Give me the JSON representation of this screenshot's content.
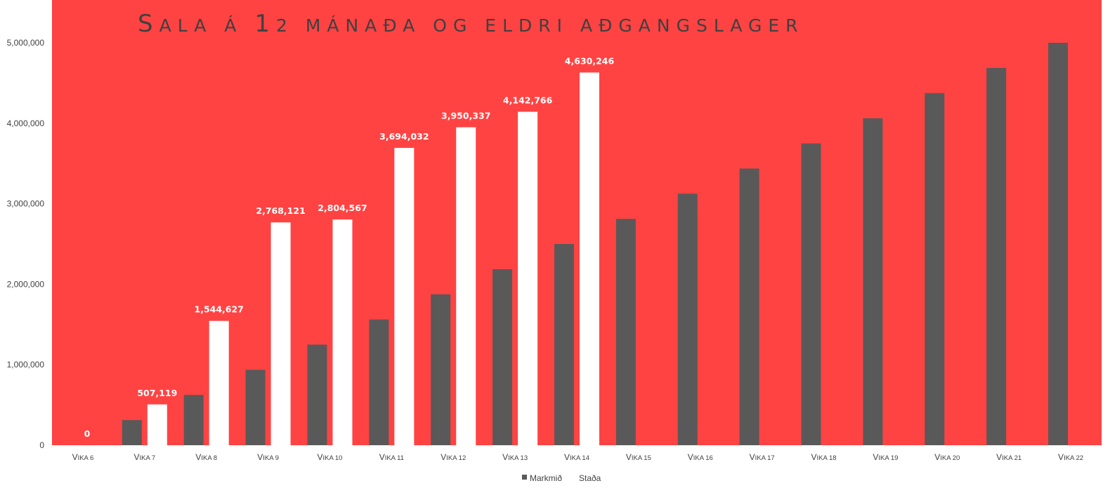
{
  "chart_data": {
    "type": "bar",
    "title": "Sala á 12 mánaða og eldri aðgangslager",
    "categories": [
      "Vika 6",
      "Vika 7",
      "Vika 8",
      "Vika 9",
      "Vika 10",
      "Vika 11",
      "Vika 12",
      "Vika 13",
      "Vika 14",
      "Vika 15",
      "Vika 16",
      "Vika 17",
      "Vika 18",
      "Vika 19",
      "Vika 20",
      "Vika 21",
      "Vika 22"
    ],
    "series": [
      {
        "name": "Markmið",
        "color": "#595959",
        "values": [
          0,
          312500,
          625000,
          937500,
          1250000,
          1562500,
          1875000,
          2187500,
          2500000,
          2812500,
          3125000,
          3437500,
          3750000,
          4062500,
          4375000,
          4687500,
          5000000
        ]
      },
      {
        "name": "Staða",
        "color": "#ffffff",
        "values": [
          0,
          507119,
          1544627,
          2768121,
          2804567,
          3694032,
          3950337,
          4142766,
          4630246,
          null,
          null,
          null,
          null,
          null,
          null,
          null,
          null
        ],
        "data_labels": [
          "0",
          "507,119",
          "1,544,627",
          "2,768,121",
          "2,804,567",
          "3,694,032",
          "3,950,337",
          "4,142,766",
          "4,630,246"
        ]
      }
    ],
    "ylim": [
      0,
      5000000
    ],
    "yticks": [
      0,
      1000000,
      2000000,
      3000000,
      4000000,
      5000000
    ],
    "ytick_labels": [
      "0",
      "1,000,000",
      "2,000,000",
      "3,000,000",
      "4,000,000",
      "5,000,000"
    ],
    "xlabel": "",
    "ylabel": "",
    "grid": false,
    "legend_position": "bottom",
    "plot_background": "#ff4343",
    "page_background": "#ffffff",
    "title_color": "#404040",
    "axis_text_color": "#404040"
  }
}
